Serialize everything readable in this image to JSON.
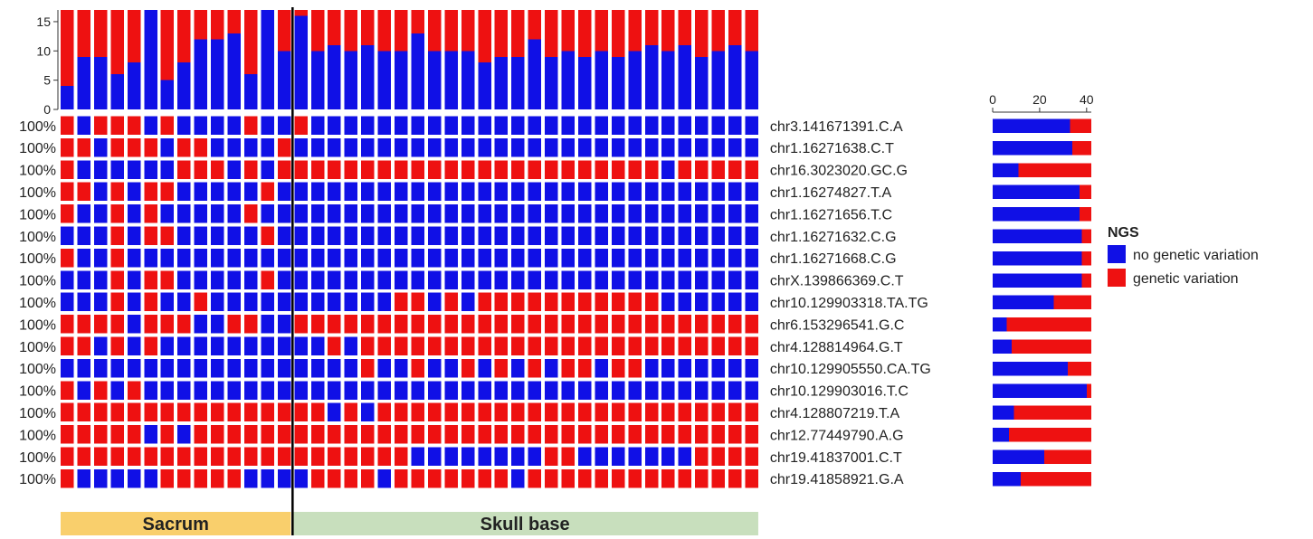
{
  "colors": {
    "none": "#1010e6",
    "var": "#ee1111",
    "sacrum": "#f9cf6c",
    "skull": "#c8dfbd",
    "text": "#222222"
  },
  "chart_data": {
    "type": "heatmap",
    "samples_total": 17,
    "top_bar": {
      "ylim": [
        0,
        17
      ],
      "yticks": [
        0,
        5,
        10,
        15
      ],
      "no_variation_counts": [
        4,
        9,
        9,
        6,
        8,
        17,
        5,
        8,
        12,
        12,
        13,
        6,
        17,
        10,
        16,
        10,
        11,
        10,
        11,
        10,
        10,
        13,
        10,
        10,
        10,
        8,
        9,
        9,
        12,
        9,
        10,
        9,
        10,
        9,
        10,
        11,
        10,
        11,
        9,
        10,
        11,
        10
      ]
    },
    "groups": [
      {
        "label": "Sacrum",
        "count": 14,
        "color": "#f9cf6c"
      },
      {
        "label": "Skull base",
        "count": 28,
        "color": "#c8dfbd"
      }
    ],
    "rows": [
      {
        "label": "chr3.141671391.C.A",
        "pct": "100%",
        "cells": "101110100001001000000000000000000000000000"
      },
      {
        "label": "chr1.16271638.C.T",
        "pct": "100%",
        "cells": "110111011000010000000000000000000000000000"
      },
      {
        "label": "chr16.3023020.GC.G",
        "pct": "100%",
        "cells": "100000011101011111111111111111111111011111"
      },
      {
        "label": "chr1.16274827.T.A",
        "pct": "100%",
        "cells": "110101100000100000000000000000000000000000"
      },
      {
        "label": "chr1.16271656.T.C",
        "pct": "100%",
        "cells": "100101000001000000000000000000000000000000"
      },
      {
        "label": "chr1.16271632.C.G",
        "pct": "100%",
        "cells": "000101100000100000000000000000000000000000"
      },
      {
        "label": "chr1.16271668.C.G",
        "pct": "100%",
        "cells": "100100000000000000000000000000000000000000"
      },
      {
        "label": "chrX.139866369.C.T",
        "pct": "100%",
        "cells": "000101100000100000000000000000000000000000"
      },
      {
        "label": "chr10.129903318.TA.TG",
        "pct": "100%",
        "cells": "000101001000000000001101011111111111000000"
      },
      {
        "label": "chr6.153296541.G.C",
        "pct": "100%",
        "cells": "111101110011001111111111111111111111111111"
      },
      {
        "label": "chr4.128814964.G.T",
        "pct": "100%",
        "cells": "110101000000000010111111111111111111111111"
      },
      {
        "label": "chr10.129905550.CA.TG",
        "pct": "100%",
        "cells": "000000000000000000100100101010110110000000"
      },
      {
        "label": "chr10.129903016.T.C",
        "pct": "100%",
        "cells": "101010000000000000000000000000000000000000"
      },
      {
        "label": "chr4.128807219.T.A",
        "pct": "100%",
        "cells": "111111111111111101011111111111111111111111"
      },
      {
        "label": "chr12.77449790.A.G",
        "pct": "100%",
        "cells": "111110101111111111111111111111111111111111"
      },
      {
        "label": "chr19.41837001.C.T",
        "pct": "100%",
        "cells": "111111111111111111111000000001100000001111"
      },
      {
        "label": "chr19.41858921.G.A",
        "pct": "100%",
        "cells": "100000111110000111101111111011111111111111"
      }
    ],
    "side_bar": {
      "xlim": [
        0,
        42
      ],
      "xticks": [
        0,
        20,
        40
      ],
      "total": 42,
      "no_variation_counts": [
        33,
        34,
        11,
        37,
        37,
        38,
        38,
        38,
        26,
        6,
        8,
        32,
        40,
        9,
        7,
        22,
        12
      ]
    },
    "legend": {
      "title": "NGS",
      "items": [
        {
          "label": "no genetic variation",
          "key": "none"
        },
        {
          "label": "genetic variation",
          "key": "var"
        }
      ],
      "placement": "right"
    }
  }
}
